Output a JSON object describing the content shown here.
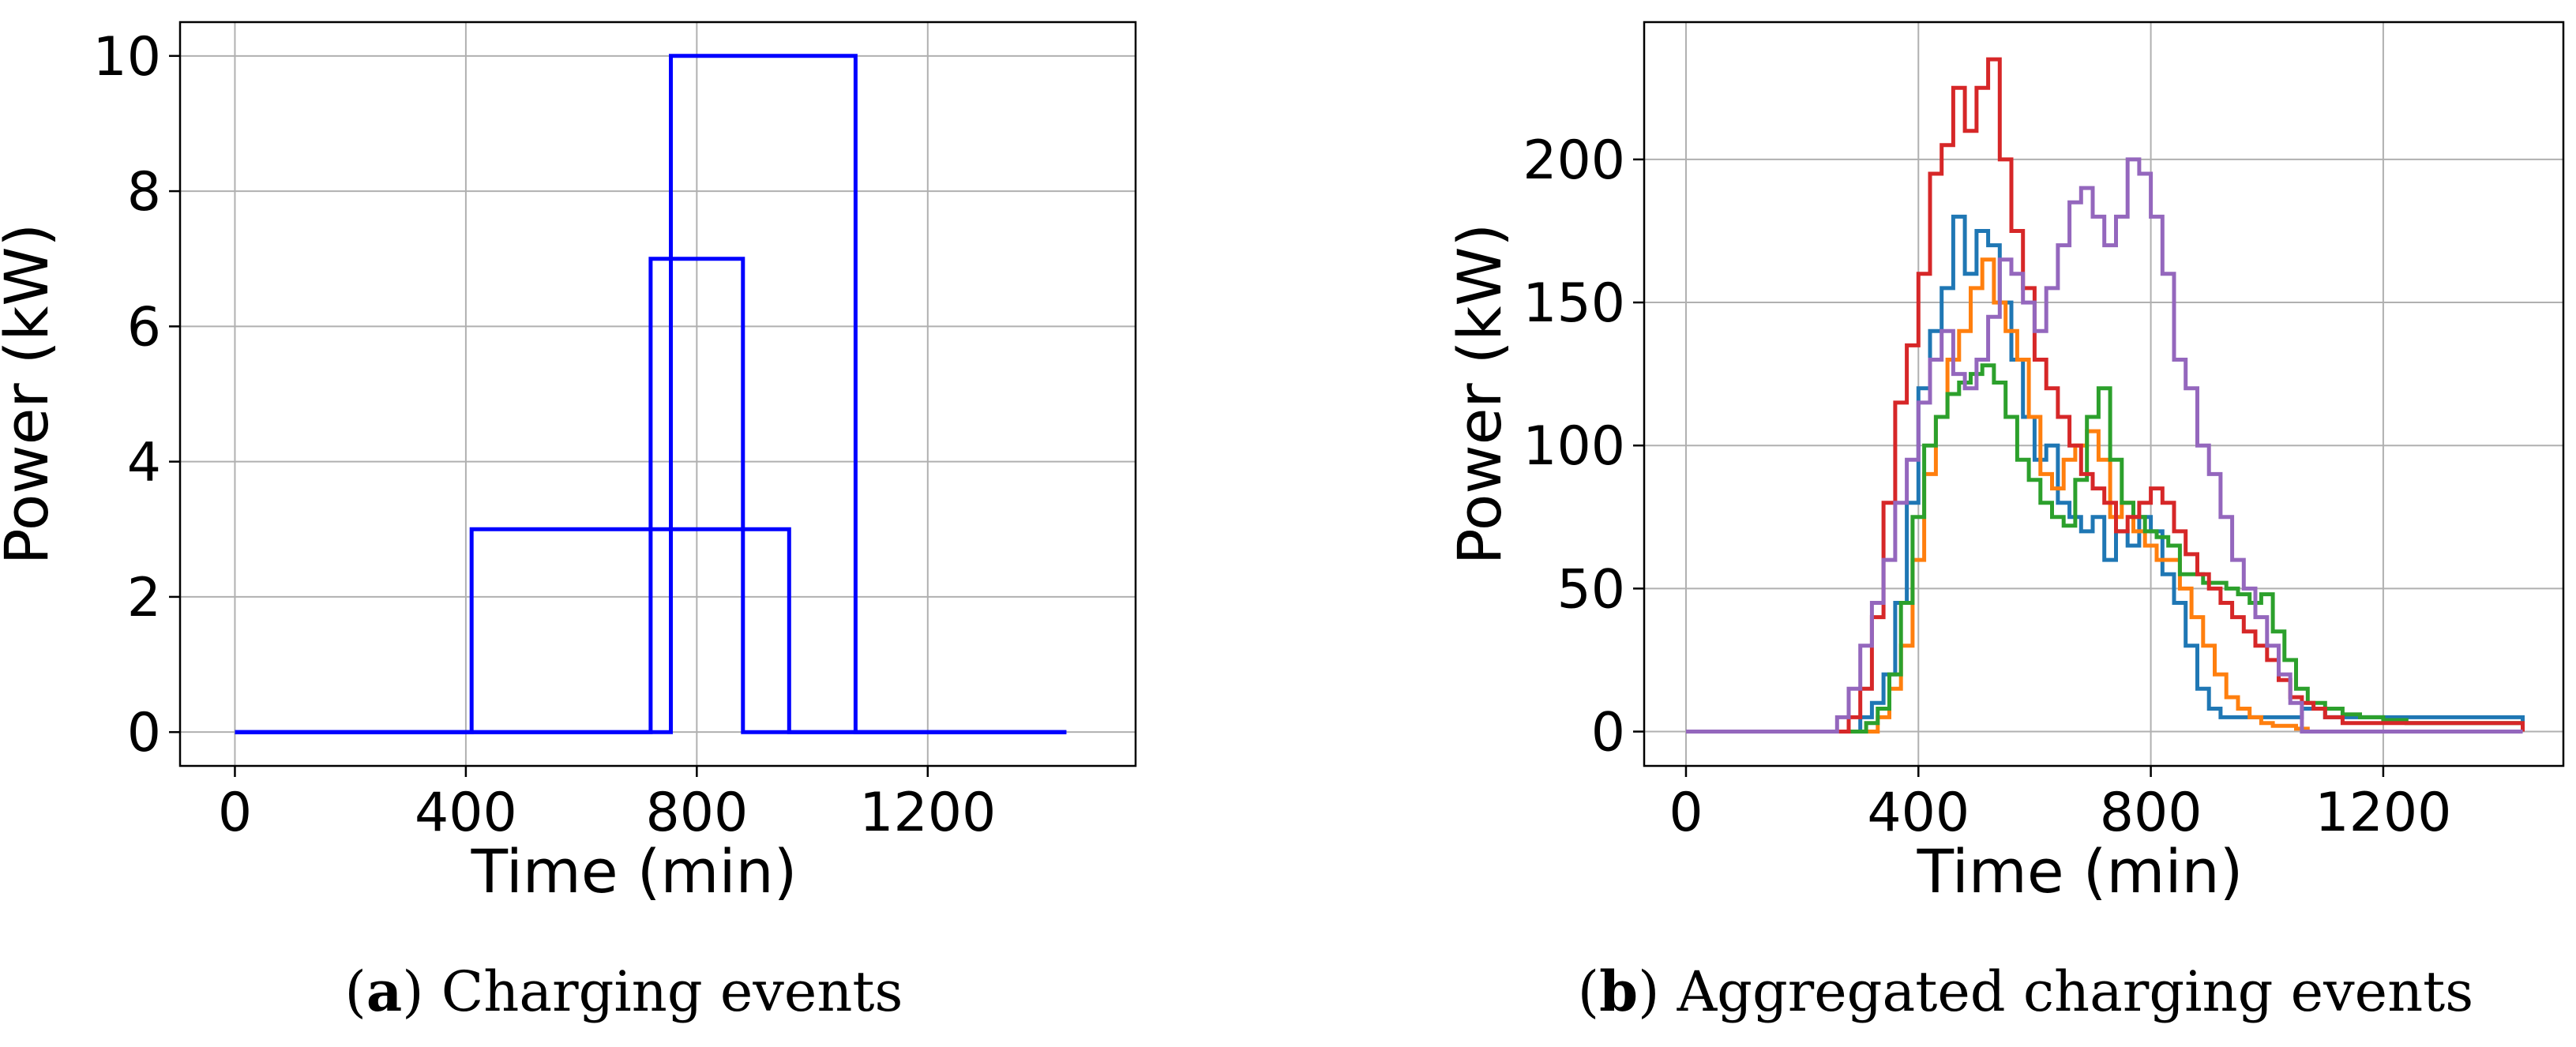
{
  "chart_data": [
    {
      "type": "line",
      "caption": {
        "letter": "a",
        "text": "Charging events"
      },
      "xlabel": "Time (min)",
      "ylabel": "Power (kW)",
      "xlim": [
        -95,
        1560
      ],
      "ylim": [
        -0.5,
        10.5
      ],
      "xticks": [
        0,
        400,
        800,
        1200
      ],
      "yticks": [
        0,
        2,
        4,
        6,
        8,
        10
      ],
      "grid": true,
      "series": [
        {
          "color": "#0000ff",
          "x": [
            0,
            410,
            410,
            960,
            960,
            1440
          ],
          "y": [
            0,
            0,
            3,
            3,
            0,
            0
          ]
        },
        {
          "color": "#0000ff",
          "x": [
            0,
            720,
            720,
            880,
            880,
            1440
          ],
          "y": [
            0,
            0,
            7,
            7,
            0,
            0
          ]
        },
        {
          "color": "#0000ff",
          "x": [
            0,
            755,
            755,
            1075,
            1075,
            1440
          ],
          "y": [
            0,
            0,
            10,
            10,
            0,
            0
          ]
        }
      ]
    },
    {
      "type": "line",
      "caption": {
        "letter": "b",
        "text": "Aggregated charging events"
      },
      "xlabel": "Time (min)",
      "ylabel": "Power (kW)",
      "xlim": [
        -72,
        1510
      ],
      "ylim": [
        -12,
        248
      ],
      "xticks": [
        0,
        400,
        800,
        1200
      ],
      "yticks": [
        0,
        50,
        100,
        150,
        200
      ],
      "grid": true,
      "series": [
        {
          "color": "#1f77b4",
          "x": [
            0,
            300,
            320,
            340,
            360,
            380,
            400,
            420,
            440,
            460,
            480,
            500,
            520,
            540,
            560,
            580,
            600,
            620,
            640,
            660,
            680,
            700,
            720,
            740,
            760,
            780,
            800,
            820,
            840,
            860,
            880,
            900,
            920,
            940,
            960,
            980,
            1000,
            1020,
            1040,
            1060,
            1080,
            1100,
            1120,
            1140,
            1440
          ],
          "y": [
            0,
            5,
            10,
            20,
            45,
            80,
            120,
            140,
            155,
            180,
            160,
            175,
            170,
            150,
            130,
            110,
            95,
            100,
            80,
            75,
            70,
            75,
            60,
            70,
            65,
            75,
            70,
            55,
            45,
            30,
            15,
            8,
            5,
            5,
            5,
            5,
            5,
            5,
            5,
            8,
            8,
            5,
            5,
            5,
            0
          ]
        },
        {
          "color": "#ff7f0e",
          "x": [
            0,
            330,
            350,
            370,
            390,
            410,
            430,
            450,
            470,
            490,
            510,
            530,
            550,
            570,
            590,
            610,
            630,
            650,
            670,
            690,
            710,
            730,
            750,
            770,
            790,
            810,
            830,
            850,
            870,
            890,
            910,
            930,
            950,
            970,
            990,
            1010,
            1030,
            1050,
            1070,
            1440
          ],
          "y": [
            0,
            5,
            15,
            30,
            60,
            90,
            110,
            130,
            140,
            155,
            165,
            150,
            140,
            130,
            110,
            90,
            85,
            95,
            100,
            105,
            95,
            75,
            80,
            70,
            65,
            60,
            60,
            50,
            40,
            30,
            20,
            12,
            8,
            5,
            3,
            2,
            2,
            1,
            0,
            0
          ]
        },
        {
          "color": "#2ca02c",
          "x": [
            0,
            310,
            330,
            350,
            370,
            390,
            410,
            430,
            450,
            470,
            490,
            510,
            530,
            550,
            570,
            590,
            610,
            630,
            650,
            670,
            690,
            710,
            730,
            750,
            770,
            790,
            810,
            830,
            850,
            870,
            890,
            910,
            930,
            950,
            970,
            990,
            1010,
            1030,
            1050,
            1070,
            1100,
            1130,
            1160,
            1200,
            1240,
            1280,
            1440
          ],
          "y": [
            0,
            3,
            8,
            20,
            45,
            75,
            100,
            110,
            118,
            122,
            125,
            128,
            122,
            110,
            95,
            88,
            80,
            75,
            72,
            88,
            110,
            120,
            95,
            80,
            75,
            70,
            68,
            65,
            55,
            55,
            52,
            52,
            50,
            48,
            45,
            48,
            35,
            25,
            15,
            10,
            8,
            6,
            5,
            4,
            3,
            3,
            0
          ]
        },
        {
          "color": "#d62728",
          "x": [
            0,
            280,
            300,
            320,
            340,
            360,
            380,
            400,
            420,
            440,
            460,
            480,
            500,
            520,
            540,
            560,
            580,
            600,
            620,
            640,
            660,
            680,
            700,
            720,
            740,
            760,
            780,
            800,
            820,
            840,
            860,
            880,
            900,
            920,
            940,
            960,
            980,
            1000,
            1020,
            1040,
            1060,
            1080,
            1100,
            1130,
            1440
          ],
          "y": [
            0,
            5,
            15,
            40,
            80,
            115,
            135,
            160,
            195,
            205,
            225,
            210,
            225,
            235,
            200,
            175,
            155,
            130,
            120,
            110,
            100,
            90,
            85,
            80,
            70,
            75,
            80,
            85,
            80,
            70,
            62,
            55,
            50,
            45,
            40,
            35,
            30,
            25,
            18,
            12,
            10,
            8,
            5,
            3,
            0
          ]
        },
        {
          "color": "#9467bd",
          "x": [
            0,
            260,
            280,
            300,
            320,
            340,
            360,
            380,
            400,
            420,
            440,
            460,
            480,
            500,
            520,
            540,
            560,
            580,
            600,
            620,
            640,
            660,
            680,
            700,
            720,
            740,
            760,
            780,
            800,
            820,
            840,
            860,
            880,
            900,
            920,
            940,
            960,
            980,
            1000,
            1020,
            1040,
            1060,
            1440
          ],
          "y": [
            0,
            5,
            15,
            30,
            45,
            60,
            80,
            95,
            115,
            130,
            140,
            125,
            120,
            130,
            145,
            165,
            160,
            150,
            140,
            155,
            170,
            185,
            190,
            180,
            170,
            180,
            200,
            195,
            180,
            160,
            130,
            120,
            100,
            90,
            75,
            60,
            50,
            40,
            30,
            20,
            10,
            0,
            0
          ]
        }
      ]
    }
  ]
}
